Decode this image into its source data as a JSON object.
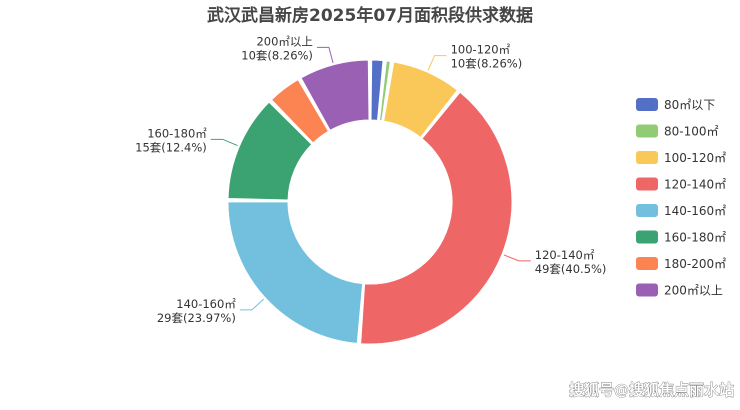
{
  "watermark": "搜狐号@搜狐焦点丽水站",
  "chart_data": {
    "type": "pie",
    "title": "武汉武昌新房2025年07月面积段供求数据",
    "legend_position": "right",
    "unit": "套",
    "categories": [
      "80㎡以下",
      "80-100㎡",
      "100-120㎡",
      "120-140㎡",
      "140-160㎡",
      "160-180㎡",
      "180-200㎡",
      "200㎡以上"
    ],
    "values": [
      2,
      1,
      10,
      49,
      29,
      15,
      5,
      10
    ],
    "colors": [
      "#5470c6",
      "#91cc75",
      "#fac858",
      "#ee6666",
      "#73c0de",
      "#3ba272",
      "#fc8452",
      "#9a60b4"
    ],
    "data_labels": [
      {
        "category": "100-120㎡",
        "line1": "100-120㎡",
        "line2": "10套(8.26%)"
      },
      {
        "category": "120-140㎡",
        "line1": "120-140㎡",
        "line2": "49套(40.5%)"
      },
      {
        "category": "140-160㎡",
        "line1": "140-160㎡",
        "line2": "29套(23.97%)"
      },
      {
        "category": "160-180㎡",
        "line1": "160-180㎡",
        "line2": "15套(12.4%)"
      },
      {
        "category": "200㎡以上",
        "line1": "200㎡以上",
        "line2": "10套(8.26%)"
      }
    ]
  }
}
